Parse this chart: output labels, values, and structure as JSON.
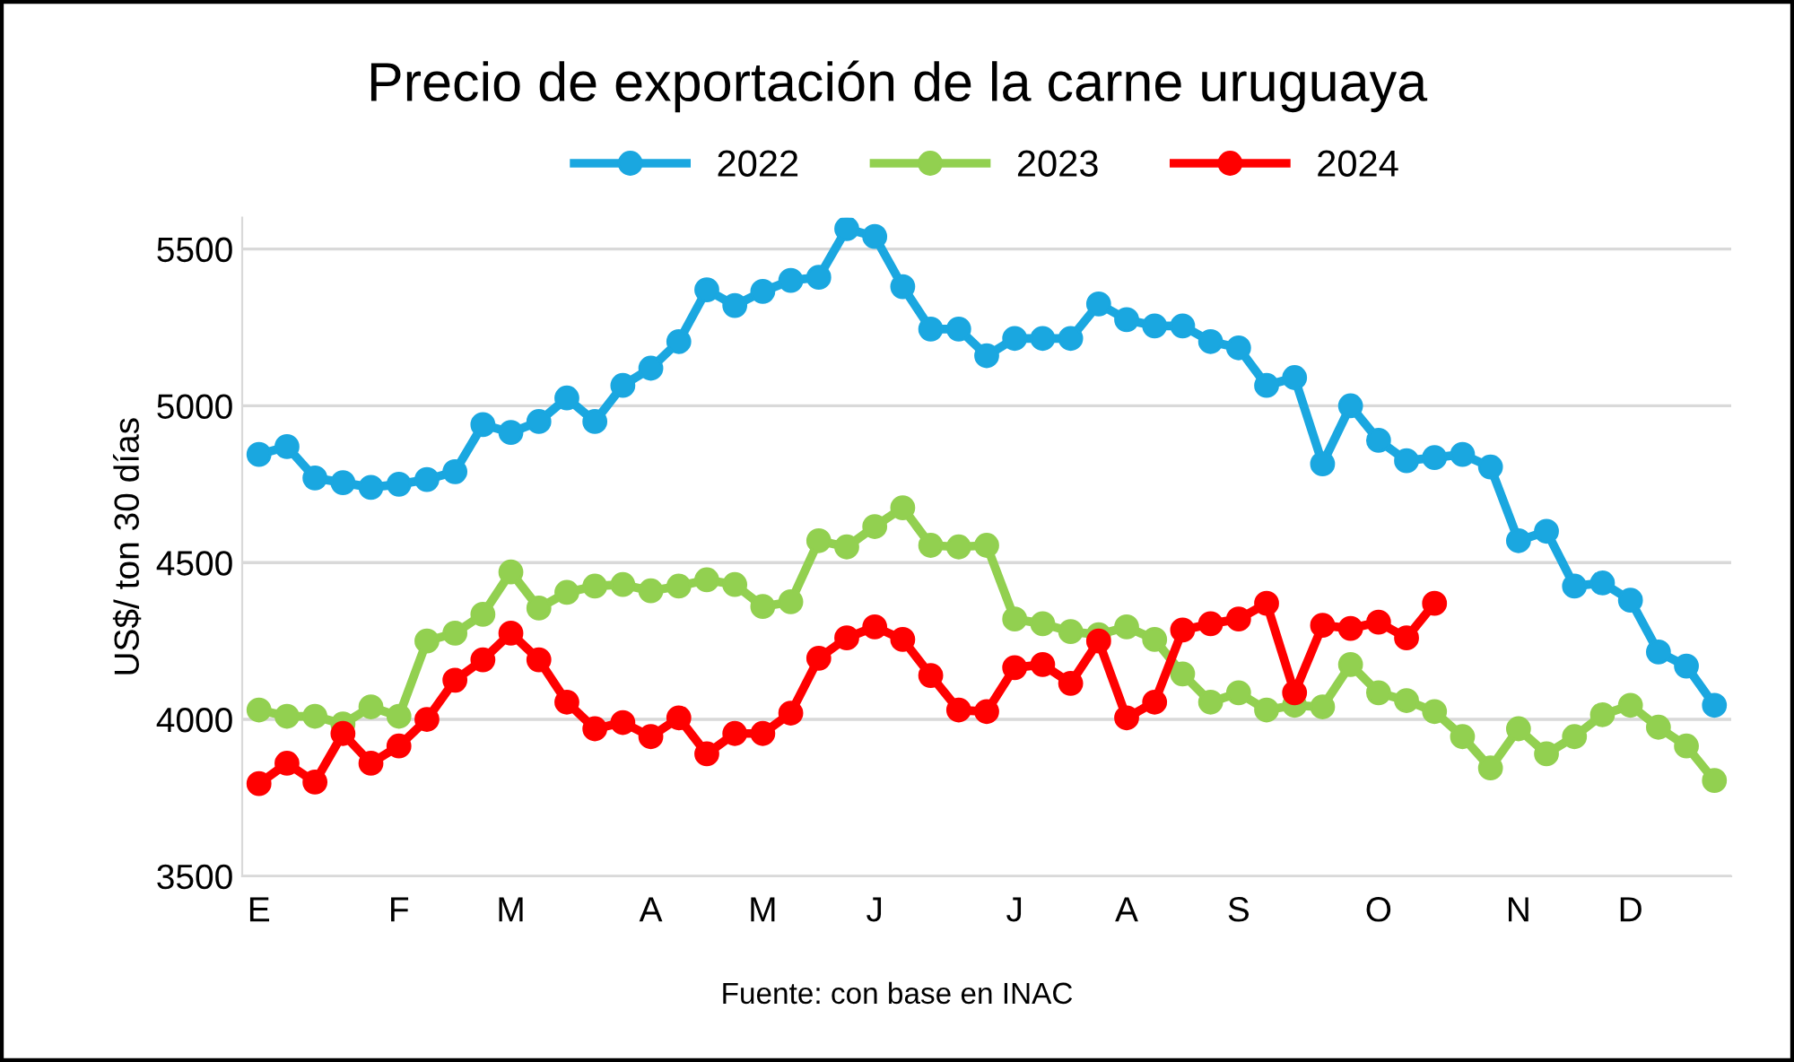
{
  "chart_data": {
    "type": "line",
    "title": "Precio de exportación de la carne uruguaya",
    "ylabel": "US$/ ton 30 días",
    "categories": [
      "E",
      null,
      null,
      null,
      null,
      "F",
      null,
      null,
      null,
      "M",
      null,
      null,
      null,
      null,
      "A",
      null,
      null,
      null,
      "M",
      null,
      null,
      null,
      "J",
      null,
      null,
      null,
      null,
      "J",
      null,
      null,
      null,
      "A",
      null,
      null,
      null,
      "S",
      null,
      null,
      null,
      null,
      "O",
      null,
      null,
      null,
      null,
      "N",
      null,
      null,
      null,
      "D",
      null,
      null,
      null
    ],
    "series": [
      {
        "name": "2022",
        "color": "#1aa7e0",
        "values": [
          4845,
          4870,
          4770,
          4755,
          4740,
          4750,
          4765,
          4790,
          4940,
          4915,
          4950,
          5025,
          4950,
          5065,
          5120,
          5205,
          5370,
          5320,
          5365,
          5400,
          5410,
          5565,
          5540,
          5380,
          5245,
          5245,
          5160,
          5215,
          5215,
          5215,
          5325,
          5275,
          5255,
          5255,
          5205,
          5185,
          5065,
          5090,
          4815,
          5000,
          4890,
          4825,
          4835,
          4845,
          4805,
          4570,
          4600,
          4425,
          4435,
          4380,
          4215,
          4170,
          4045
        ]
      },
      {
        "name": "2023",
        "color": "#92d050",
        "values": [
          4030,
          4010,
          4010,
          3985,
          4040,
          4010,
          4250,
          4275,
          4335,
          4470,
          4355,
          4405,
          4425,
          4430,
          4410,
          4425,
          4445,
          4430,
          4360,
          4375,
          4570,
          4550,
          4615,
          4675,
          4555,
          4550,
          4555,
          4320,
          4305,
          4280,
          4270,
          4295,
          4255,
          4145,
          4055,
          4085,
          4030,
          4045,
          4040,
          4175,
          4085,
          4060,
          4025,
          3945,
          3845,
          3970,
          3890,
          3945,
          4015,
          4045,
          3975,
          3915,
          3805
        ]
      },
      {
        "name": "2024",
        "color": "#ff0000",
        "values": [
          3795,
          3860,
          3800,
          3955,
          3860,
          3915,
          4000,
          4125,
          4190,
          4275,
          4190,
          4055,
          3970,
          3990,
          3945,
          4005,
          3890,
          3955,
          3955,
          4020,
          4195,
          4260,
          4295,
          4255,
          4140,
          4030,
          4025,
          4165,
          4175,
          4115,
          4250,
          4005,
          4055,
          4285,
          4305,
          4320,
          4370,
          4085,
          4300,
          4290,
          4310,
          4260,
          4370,
          null,
          null,
          null,
          null,
          null,
          null,
          null,
          null,
          null,
          null
        ]
      }
    ],
    "ylim": [
      3500,
      5600
    ],
    "yticks": [
      3500,
      4000,
      4500,
      5000,
      5500
    ],
    "grid": "y",
    "legend": "top",
    "marker": "circle",
    "line_style": "solid",
    "annotations": [
      "Fuente: con base en INAC"
    ]
  }
}
